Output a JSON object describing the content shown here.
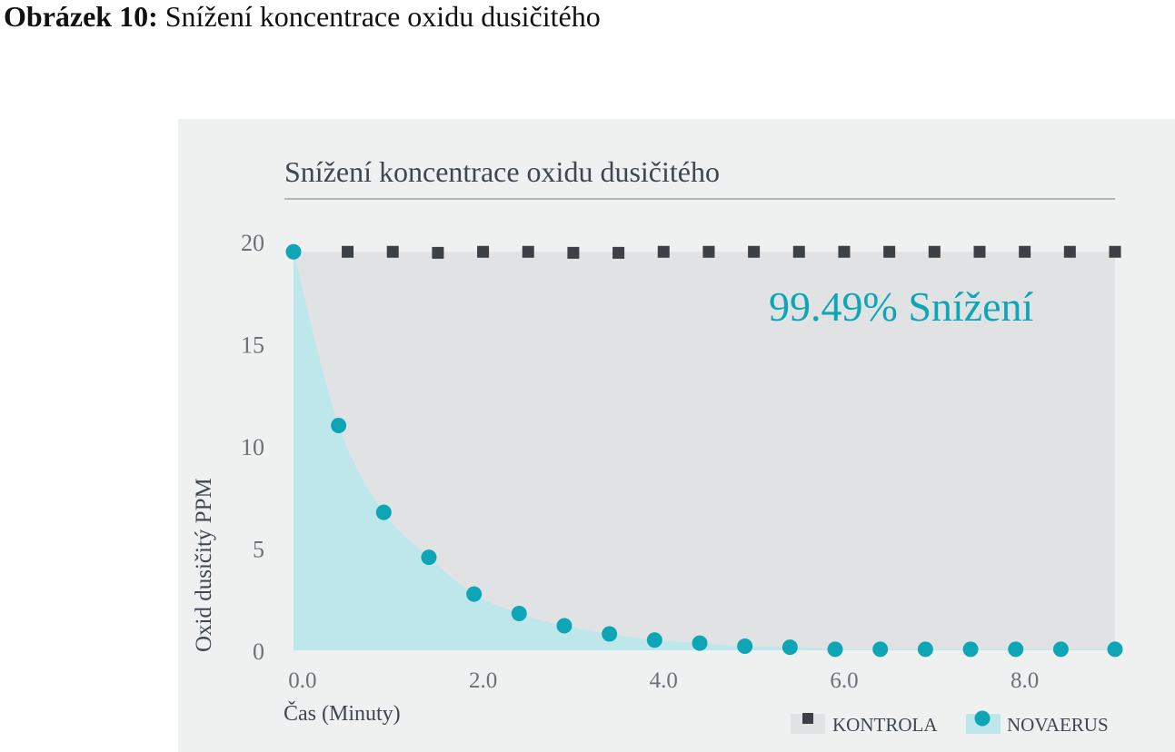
{
  "figure": {
    "label": "Obrázek 10:",
    "caption": "Snížení koncentrace oxidu dusičitého"
  },
  "colors": {
    "panel_bg": "#eff1f0",
    "control": "#3b4147",
    "control_fill": "#e1e2e4",
    "novaerus": "#0ea5b6",
    "novaerus_fill": "#bde7eb",
    "annotation": "#0ea5b6",
    "text": "#3e4650"
  },
  "chart_data": {
    "type": "scatter",
    "title": "Snížení koncentrace oxidu dusičitého",
    "xlabel": "Čas (Minuty)",
    "ylabel": "Oxid dusičitý PPM",
    "xlim": [
      -0.2,
      9.0
    ],
    "ylim": [
      0,
      20
    ],
    "x_ticks": [
      0,
      2,
      4,
      6,
      8
    ],
    "x_tick_labels": [
      "0.0",
      "2.0",
      "4.0",
      "6.0",
      "8.0"
    ],
    "y_ticks": [
      0,
      5,
      10,
      15,
      20
    ],
    "y_tick_labels": [
      "0",
      "5",
      "10",
      "15",
      "20"
    ],
    "legend_position": "bottom-right",
    "annotation": "99.49% Snížení",
    "series": [
      {
        "name": "KONTROLA",
        "marker": "square",
        "x": [
          0.5,
          1.0,
          1.5,
          2.0,
          2.5,
          3.0,
          3.5,
          4.0,
          4.5,
          5.0,
          5.5,
          6.0,
          6.5,
          7.0,
          7.5,
          8.0,
          8.5,
          9.0
        ],
        "values": [
          19.5,
          19.5,
          19.45,
          19.5,
          19.5,
          19.45,
          19.45,
          19.5,
          19.5,
          19.5,
          19.5,
          19.5,
          19.5,
          19.5,
          19.5,
          19.5,
          19.5,
          19.5
        ]
      },
      {
        "name": "NOVAERUS",
        "marker": "circle",
        "x": [
          -0.1,
          0.4,
          0.9,
          1.4,
          1.9,
          2.4,
          2.9,
          3.4,
          3.9,
          4.4,
          4.9,
          5.4,
          5.9,
          6.4,
          6.9,
          7.4,
          7.9,
          8.4,
          9.0
        ],
        "values": [
          19.5,
          11.0,
          6.75,
          4.55,
          2.75,
          1.8,
          1.2,
          0.8,
          0.5,
          0.35,
          0.2,
          0.15,
          0.05,
          0.05,
          0.05,
          0.05,
          0.05,
          0.05,
          0.05
        ]
      }
    ]
  }
}
